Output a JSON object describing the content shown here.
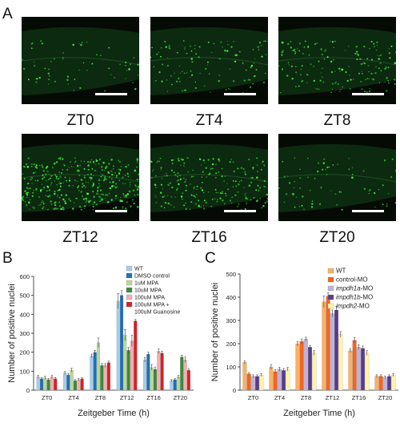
{
  "panel_a": {
    "letter": "A",
    "images": [
      {
        "label": "ZT0",
        "density": 60
      },
      {
        "label": "ZT4",
        "density": 110
      },
      {
        "label": "ZT8",
        "density": 160
      },
      {
        "label": "ZT12",
        "density": 380
      },
      {
        "label": "ZT16",
        "density": 220
      },
      {
        "label": "ZT20",
        "density": 70
      }
    ]
  },
  "chart_data": [
    {
      "type": "bar",
      "panel": "B",
      "ylabel": "Number of positive nuclei",
      "xlabel": "Zeitgeber Time (h)",
      "ylim": [
        0,
        600
      ],
      "yticks": [
        0,
        100,
        200,
        300,
        400,
        500,
        600
      ],
      "categories": [
        "ZT0",
        "ZT4",
        "ZT8",
        "ZT12",
        "ZT16",
        "ZT20"
      ],
      "legend_position": "top-right",
      "series": [
        {
          "name": "WT",
          "color": "#a9cde8",
          "values": [
            70,
            90,
            180,
            470,
            160,
            50
          ],
          "errors": [
            8,
            8,
            10,
            40,
            12,
            6
          ]
        },
        {
          "name": "DMSO control",
          "color": "#1f6fb5",
          "values": [
            60,
            80,
            200,
            500,
            190,
            55
          ],
          "errors": [
            6,
            8,
            10,
            25,
            10,
            6
          ]
        },
        {
          "name": "1uM MPA",
          "color": "#b8d89a",
          "values": [
            65,
            105,
            250,
            290,
            120,
            70
          ],
          "errors": [
            8,
            10,
            25,
            30,
            15,
            8
          ]
        },
        {
          "name": "10uM MPA",
          "color": "#3a8a3a",
          "values": [
            55,
            50,
            130,
            210,
            110,
            175
          ],
          "errors": [
            6,
            6,
            10,
            15,
            12,
            10
          ]
        },
        {
          "name": "100uM MPA",
          "color": "#f4aeb0",
          "values": [
            70,
            55,
            130,
            260,
            205,
            160
          ],
          "errors": [
            8,
            6,
            10,
            30,
            12,
            15
          ]
        },
        {
          "name": "100uM MPA + 100uM Guanosine",
          "color": "#d62026",
          "values": [
            60,
            60,
            145,
            365,
            195,
            105
          ],
          "errors": [
            6,
            6,
            8,
            8,
            10,
            8
          ]
        }
      ]
    },
    {
      "type": "bar",
      "panel": "C",
      "ylabel": "Number of positive nuclei",
      "xlabel": "Zeitgeber Time (h)",
      "ylim": [
        0,
        500
      ],
      "yticks": [
        0,
        100,
        200,
        300,
        400,
        500
      ],
      "categories": [
        "ZT0",
        "ZT4",
        "ZT8",
        "ZT12",
        "ZT16",
        "ZT20"
      ],
      "legend_position": "top-right",
      "series": [
        {
          "name": "WT",
          "color": "#f7b267",
          "values": [
            120,
            100,
            200,
            380,
            170,
            60
          ],
          "errors": [
            6,
            10,
            10,
            25,
            8,
            6
          ]
        },
        {
          "name": "control-MO",
          "color": "#f26522",
          "values": [
            70,
            80,
            210,
            405,
            215,
            60
          ],
          "errors": [
            6,
            8,
            10,
            15,
            12,
            6
          ]
        },
        {
          "name": "impdh1a-MO",
          "color": "#bcb3d6",
          "values": [
            60,
            90,
            220,
            330,
            185,
            55
          ],
          "errors": [
            6,
            8,
            8,
            15,
            10,
            6
          ]
        },
        {
          "name": "impdh1b-MO",
          "color": "#5b3b8c",
          "values": [
            60,
            85,
            185,
            345,
            180,
            60
          ],
          "errors": [
            6,
            8,
            8,
            15,
            10,
            6
          ]
        },
        {
          "name": "impdh2-MO",
          "color": "#fff3a8",
          "values": [
            65,
            90,
            160,
            240,
            160,
            65
          ],
          "errors": [
            6,
            8,
            10,
            12,
            10,
            6
          ]
        }
      ]
    }
  ]
}
